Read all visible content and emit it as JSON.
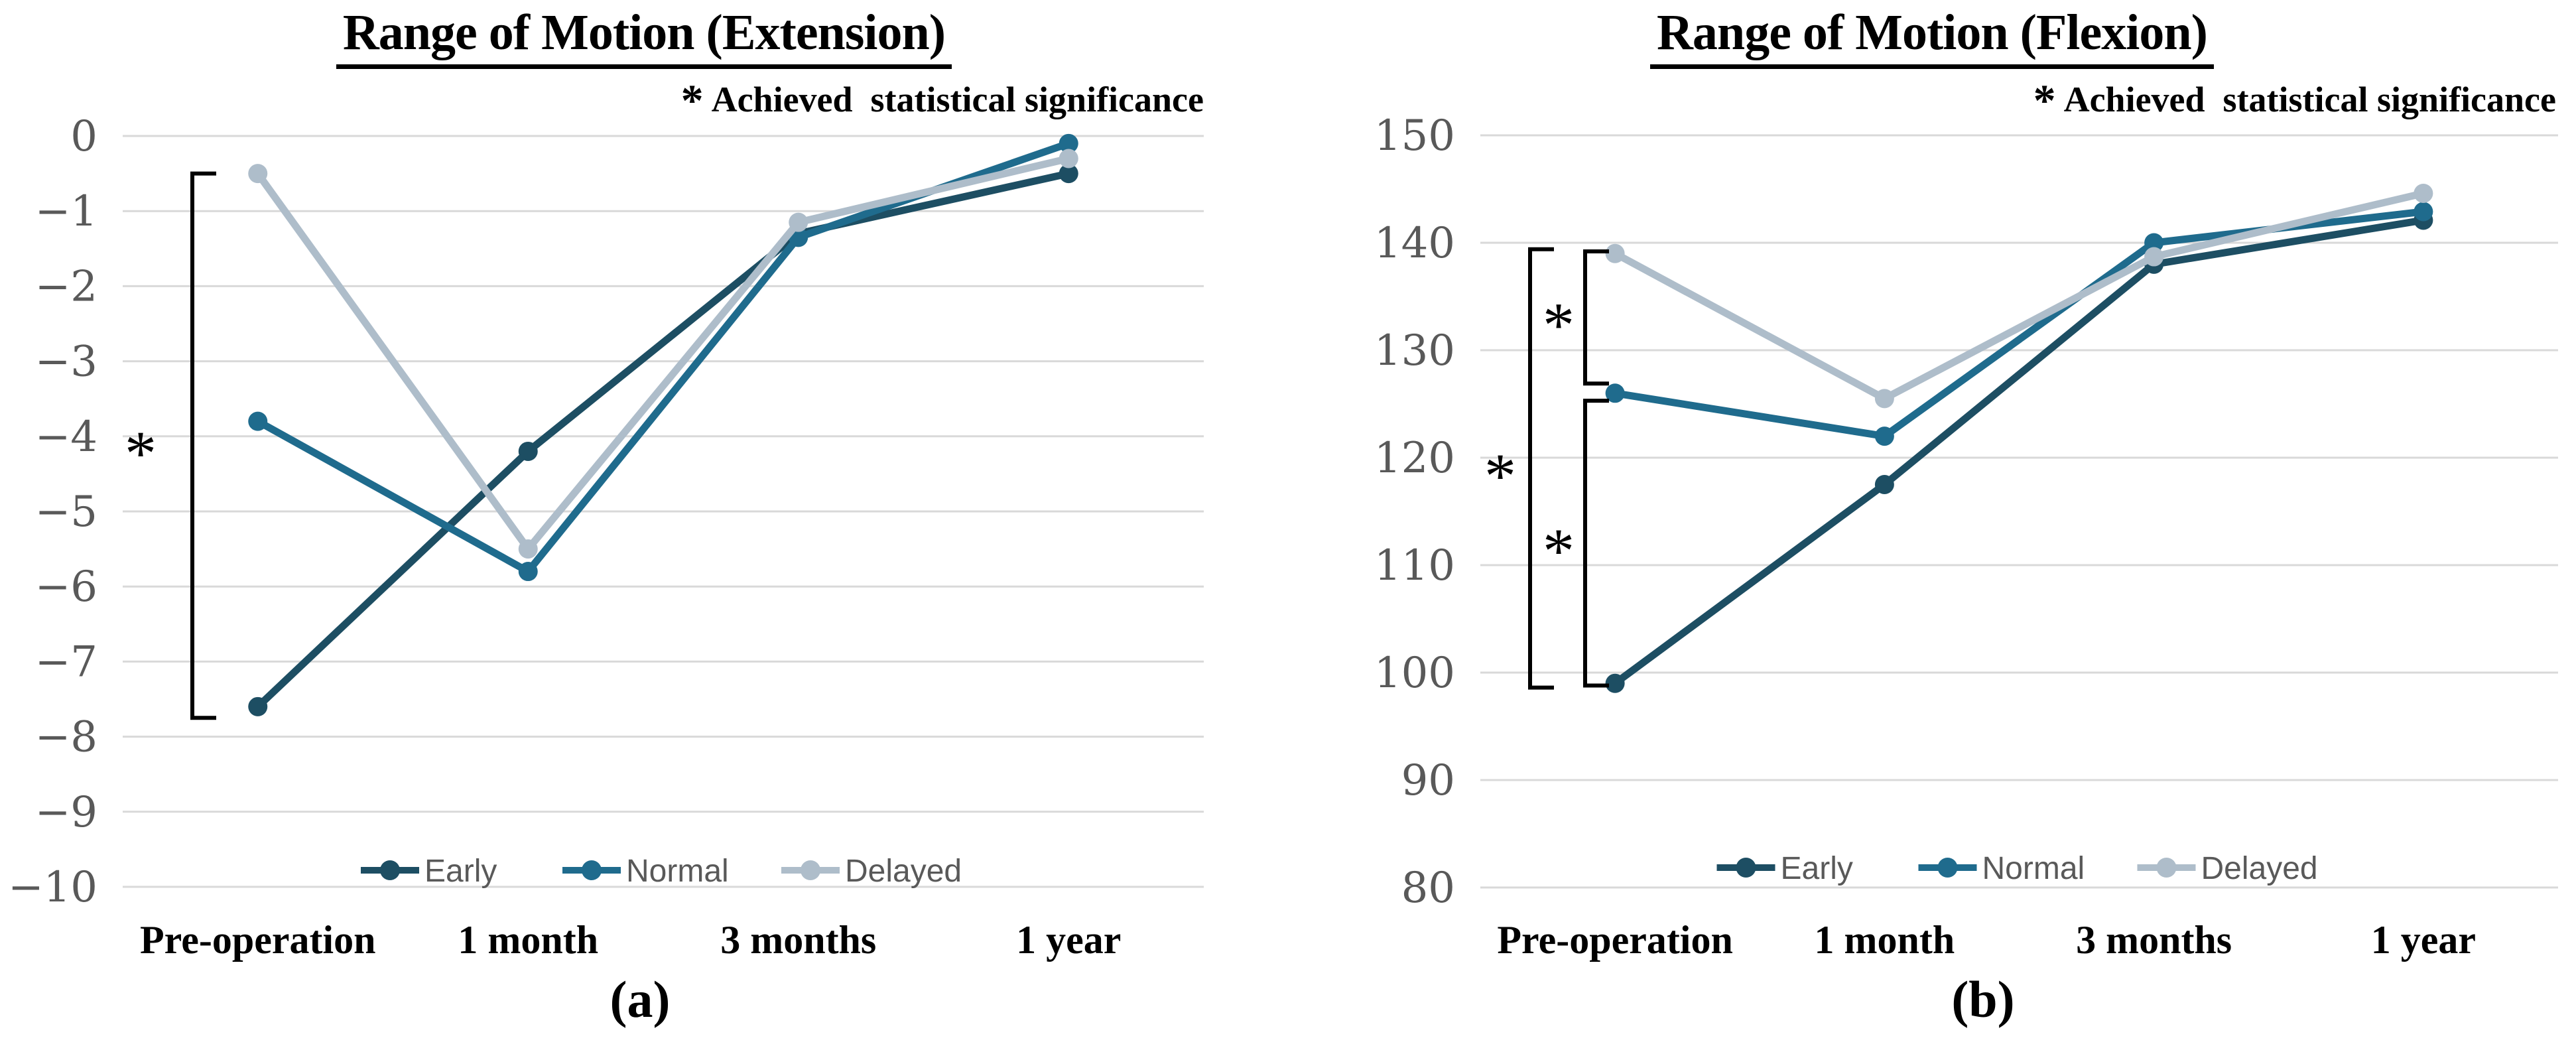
{
  "figure": {
    "background": "#ffffff",
    "colors": {
      "gridline": "#d9d9d9",
      "tick_label_text": "#595959",
      "legend_text": "#595959",
      "title_text": "#000000",
      "bracket": "#000000"
    }
  },
  "chart_data": [
    {
      "id": "extension",
      "type": "line",
      "title": "Range of Motion (Extension)",
      "annotation": {
        "star": "*",
        "text": "Achieved  statistical significance"
      },
      "caption": "(a)",
      "categories": [
        "Pre-operation",
        "1 month",
        "3 months",
        "1 year"
      ],
      "series": [
        {
          "name": "Early",
          "color": "#1d4e63",
          "values": [
            -7.6,
            -4.2,
            -1.3,
            -0.5
          ]
        },
        {
          "name": "Normal",
          "color": "#1f6b8d",
          "values": [
            -3.8,
            -5.8,
            -1.35,
            -0.1
          ]
        },
        {
          "name": "Delayed",
          "color": "#aebdca",
          "values": [
            -0.5,
            -5.5,
            -1.15,
            -0.3
          ]
        }
      ],
      "y_axis": {
        "min": -10,
        "max": 0,
        "step": 1,
        "tick_labels": [
          "0",
          "−1",
          "−2",
          "−3",
          "−4",
          "−5",
          "−6",
          "−7",
          "−8",
          "−9",
          "−10"
        ]
      },
      "grid": true,
      "legend": {
        "position": "bottom-inside",
        "entries": [
          "Early",
          "Normal",
          "Delayed"
        ]
      },
      "significance_brackets": [
        {
          "from": -0.5,
          "to": -7.75,
          "label": "*"
        }
      ],
      "layout": {
        "plot_left": 185,
        "plot_right": 1815,
        "plot_top": 205,
        "plot_bottom": 1337,
        "bracket_xs": [
          290
        ],
        "star_xs": [
          212
        ],
        "legend_y": 1312,
        "xlabel_y": 1437,
        "caption_x": 965
      }
    },
    {
      "id": "flexion",
      "type": "line",
      "title": "Range of Motion (Flexion)",
      "annotation": {
        "star": "*",
        "text": "Achieved  statistical significance"
      },
      "caption": "(b)",
      "categories": [
        "Pre-operation",
        "1 month",
        "3 months",
        "1 year"
      ],
      "series": [
        {
          "name": "Early",
          "color": "#1d4e63",
          "values": [
            99,
            117.5,
            138,
            142.1
          ]
        },
        {
          "name": "Normal",
          "color": "#1f6b8d",
          "values": [
            126,
            122,
            140,
            142.9
          ]
        },
        {
          "name": "Delayed",
          "color": "#aebdca",
          "values": [
            139,
            125.5,
            138.7,
            144.6
          ]
        }
      ],
      "y_axis": {
        "min": 80,
        "max": 150,
        "step": 10,
        "tick_labels": [
          "150",
          "140",
          "130",
          "120",
          "110",
          "100",
          "90",
          "80"
        ]
      },
      "grid": true,
      "legend": {
        "position": "bottom-inside",
        "entries": [
          "Early",
          "Normal",
          "Delayed"
        ]
      },
      "significance_brackets": [
        {
          "from": 139.4,
          "to": 98.6,
          "label": "*"
        },
        {
          "from": 139.2,
          "to": 126.9,
          "label": "*"
        },
        {
          "from": 125.3,
          "to": 98.8,
          "label": "*"
        }
      ],
      "layout": {
        "plot_left": 290,
        "plot_right": 1915,
        "plot_top": 204,
        "plot_bottom": 1338,
        "bracket_xs": [
          365,
          448,
          448
        ],
        "star_xs": [
          320,
          408,
          408
        ],
        "legend_y": 1308,
        "xlabel_y": 1437,
        "caption_x": 1048
      }
    }
  ]
}
